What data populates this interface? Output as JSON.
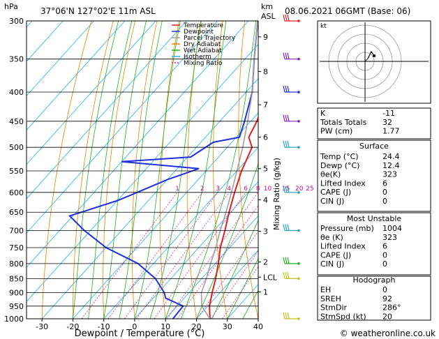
{
  "header": {
    "pressure_unit": "hPa",
    "location": "37°06'N 127°02'E 11m ASL",
    "km_unit": "km",
    "asl_unit": "ASL",
    "datetime": "08.06.2021 06GMT (Base: 06)"
  },
  "chart_data": {
    "type": "line",
    "subtype": "skew-T log-P diagram",
    "xlabel": "Dewpoint / Temperature (°C)",
    "ylabel": "hPa",
    "mixing_ratio_label": "Mixing Ratio (g/kg)",
    "x_ticks": [
      -30,
      -20,
      -10,
      0,
      10,
      20,
      30,
      40
    ],
    "xlim": [
      -35,
      40
    ],
    "ylim": [
      1000,
      300
    ],
    "y_scale": "log",
    "pressure_ticks": [
      300,
      350,
      400,
      450,
      500,
      550,
      600,
      650,
      700,
      750,
      800,
      850,
      900,
      950,
      1000
    ],
    "altitude_ticks": [
      {
        "label": "9",
        "p": 320
      },
      {
        "label": "8",
        "p": 368
      },
      {
        "label": "7",
        "p": 421
      },
      {
        "label": "6",
        "p": 480
      },
      {
        "label": "5",
        "p": 545
      },
      {
        "label": "4",
        "p": 618
      },
      {
        "label": "3",
        "p": 702
      },
      {
        "label": "2",
        "p": 795
      },
      {
        "label": "LCL",
        "p": 845
      },
      {
        "label": "1",
        "p": 897
      }
    ],
    "mixing_ratio_lines": [
      "1",
      "2",
      "3",
      "4",
      "6",
      "8",
      "10",
      "15",
      "20",
      "25"
    ],
    "mixing_ratio_label_p": 600,
    "legend": {
      "placement": "top-left",
      "entries": [
        {
          "name": "Temperature",
          "color": "#e02020"
        },
        {
          "name": "Dewpoint",
          "color": "#2030e0"
        },
        {
          "name": "Parcel Trajectory",
          "color": "#a0a0a0"
        },
        {
          "name": "Dry Adiabat",
          "color": "#f08000"
        },
        {
          "name": "Wet Adiabat",
          "color": "#20b020"
        },
        {
          "name": "Isotherm",
          "color": "#20b0f0"
        },
        {
          "name": "Mixing Ratio",
          "color": "#e020a0"
        }
      ]
    },
    "series": [
      {
        "name": "Temperature",
        "color": "#e02020",
        "points": [
          [
            1000,
            24.4
          ],
          [
            950,
            20.5
          ],
          [
            900,
            17.5
          ],
          [
            850,
            14.5
          ],
          [
            800,
            11.0
          ],
          [
            750,
            7.0
          ],
          [
            700,
            3.5
          ],
          [
            650,
            -0.5
          ],
          [
            600,
            -4.5
          ],
          [
            550,
            -8.5
          ],
          [
            500,
            -12.0
          ],
          [
            480,
            -16.0
          ],
          [
            450,
            -18.0
          ],
          [
            400,
            -23.0
          ],
          [
            350,
            -31.0
          ],
          [
            300,
            -38.0
          ]
        ]
      },
      {
        "name": "Dewpoint",
        "color": "#2030e0",
        "points": [
          [
            1000,
            12.4
          ],
          [
            950,
            12.0
          ],
          [
            920,
            4.0
          ],
          [
            900,
            2.0
          ],
          [
            850,
            -5.0
          ],
          [
            800,
            -15.0
          ],
          [
            750,
            -30.0
          ],
          [
            700,
            -42.0
          ],
          [
            660,
            -51.0
          ],
          [
            620,
            -40.0
          ],
          [
            600,
            -36.0
          ],
          [
            570,
            -30.0
          ],
          [
            545,
            -23.0
          ],
          [
            530,
            -50.0
          ],
          [
            520,
            -29.0
          ],
          [
            490,
            -26.0
          ],
          [
            480,
            -19.0
          ],
          [
            450,
            -22.0
          ],
          [
            400,
            -28.0
          ],
          [
            350,
            -37.0
          ],
          [
            300,
            -47.0
          ]
        ]
      },
      {
        "name": "Parcel Trajectory",
        "color": "#a0a0a0",
        "points": [
          [
            1000,
            24.4
          ],
          [
            950,
            18.0
          ],
          [
            900,
            14.0
          ],
          [
            850,
            11.5
          ],
          [
            800,
            8.5
          ],
          [
            750,
            5.5
          ],
          [
            700,
            2.0
          ],
          [
            650,
            -1.5
          ],
          [
            600,
            -5.5
          ],
          [
            550,
            -10.0
          ],
          [
            500,
            -15.0
          ],
          [
            450,
            -21.0
          ],
          [
            400,
            -28.0
          ],
          [
            350,
            -37.0
          ],
          [
            300,
            -47.0
          ]
        ]
      }
    ],
    "wind_barbs_pressures": [
      300,
      350,
      400,
      450,
      500,
      600,
      700,
      800,
      850,
      1000
    ]
  },
  "hodograph": {
    "unit": "kt",
    "rings": [
      10,
      20,
      30,
      40
    ]
  },
  "indices": {
    "top": [
      {
        "label": "K",
        "value": "-11"
      },
      {
        "label": "Totals Totals",
        "value": "32"
      },
      {
        "label": "PW (cm)",
        "value": "1.77"
      }
    ],
    "surface": {
      "title": "Surface",
      "rows": [
        {
          "label": "Temp (°C)",
          "value": "24.4"
        },
        {
          "label": "Dewp (°C)",
          "value": "12.4"
        },
        {
          "label": "θe(K)",
          "value": "323"
        },
        {
          "label": "Lifted Index",
          "value": "6"
        },
        {
          "label": "CAPE (J)",
          "value": "0"
        },
        {
          "label": "CIN (J)",
          "value": "0"
        }
      ]
    },
    "most_unstable": {
      "title": "Most Unstable",
      "rows": [
        {
          "label": "Pressure (mb)",
          "value": "1004"
        },
        {
          "label": "θe (K)",
          "value": "323"
        },
        {
          "label": "Lifted Index",
          "value": "6"
        },
        {
          "label": "CAPE (J)",
          "value": "0"
        },
        {
          "label": "CIN (J)",
          "value": "0"
        }
      ]
    },
    "hodograph_box": {
      "title": "Hodograph",
      "rows": [
        {
          "label": "EH",
          "value": "0"
        },
        {
          "label": "SREH",
          "value": "92"
        },
        {
          "label": "StmDir",
          "value": "286°"
        },
        {
          "label": "StmSpd (kt)",
          "value": "20"
        }
      ]
    }
  },
  "footer": {
    "copyright": "© weatheronline.co.uk"
  }
}
